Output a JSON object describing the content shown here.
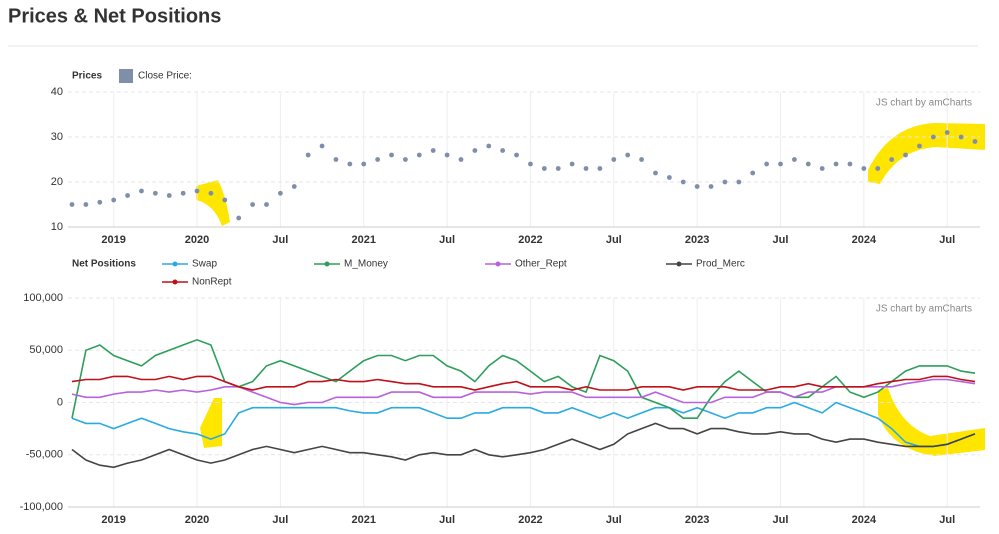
{
  "title": "Prices & Net Positions",
  "chart_data": [
    {
      "type": "scatter",
      "legend_title": "Prices",
      "watermark": "JS chart by amCharts",
      "grid": true,
      "x": [
        "2019-04",
        "2019-05",
        "2019-06",
        "2019-07",
        "2019-08",
        "2019-09",
        "2019-10",
        "2019-11",
        "2019-12",
        "2020-01",
        "2020-02",
        "2020-03",
        "2020-04",
        "2020-05",
        "2020-06",
        "2020-07",
        "2020-08",
        "2020-09",
        "2020-10",
        "2020-11",
        "2020-12",
        "2021-01",
        "2021-02",
        "2021-03",
        "2021-04",
        "2021-05",
        "2021-06",
        "2021-07",
        "2021-08",
        "2021-09",
        "2021-10",
        "2021-11",
        "2021-12",
        "2022-01",
        "2022-02",
        "2022-03",
        "2022-04",
        "2022-05",
        "2022-06",
        "2022-07",
        "2022-08",
        "2022-09",
        "2022-10",
        "2022-11",
        "2022-12",
        "2023-01",
        "2023-02",
        "2023-03",
        "2023-04",
        "2023-05",
        "2023-06",
        "2023-07",
        "2023-08",
        "2023-09",
        "2023-10",
        "2023-11",
        "2023-12",
        "2024-01",
        "2024-02",
        "2024-03",
        "2024-04",
        "2024-05",
        "2024-06",
        "2024-07",
        "2024-08",
        "2024-09"
      ],
      "xlim": [
        "2019-04",
        "2024-09"
      ],
      "xticks": [
        {
          "value": "2019-07",
          "label": "2019"
        },
        {
          "value": "2020-01",
          "label": "2020"
        },
        {
          "value": "2020-07",
          "label": "Jul"
        },
        {
          "value": "2021-01",
          "label": "2021"
        },
        {
          "value": "2021-07",
          "label": "Jul"
        },
        {
          "value": "2022-01",
          "label": "2022"
        },
        {
          "value": "2022-07",
          "label": "Jul"
        },
        {
          "value": "2023-01",
          "label": "2023"
        },
        {
          "value": "2023-07",
          "label": "Jul"
        },
        {
          "value": "2024-01",
          "label": "2024"
        },
        {
          "value": "2024-07",
          "label": "Jul"
        }
      ],
      "ylim": [
        10,
        40
      ],
      "yticks": [
        10,
        20,
        30,
        40
      ],
      "series": [
        {
          "name": "Close Price:",
          "color": "#7f8fa9",
          "values": [
            15,
            15,
            15.5,
            16,
            17,
            18,
            17.5,
            17,
            17.5,
            18,
            17.5,
            16,
            12,
            15,
            15,
            17.5,
            19,
            26,
            28,
            25,
            24,
            24,
            25,
            26,
            25,
            26,
            27,
            26,
            25,
            27,
            28,
            27,
            26,
            24,
            23,
            23,
            24,
            23,
            23,
            25,
            26,
            25,
            22,
            21,
            20,
            19,
            19,
            20,
            20,
            22,
            24,
            24,
            25,
            24,
            23,
            24,
            24,
            23,
            23,
            25,
            26,
            28,
            30,
            31,
            30,
            29
          ]
        }
      ]
    },
    {
      "type": "line",
      "legend_title": "Net Positions",
      "watermark": "JS chart by amCharts",
      "grid": true,
      "x": [
        "2019-04",
        "2019-05",
        "2019-06",
        "2019-07",
        "2019-08",
        "2019-09",
        "2019-10",
        "2019-11",
        "2019-12",
        "2020-01",
        "2020-02",
        "2020-03",
        "2020-04",
        "2020-05",
        "2020-06",
        "2020-07",
        "2020-08",
        "2020-09",
        "2020-10",
        "2020-11",
        "2020-12",
        "2021-01",
        "2021-02",
        "2021-03",
        "2021-04",
        "2021-05",
        "2021-06",
        "2021-07",
        "2021-08",
        "2021-09",
        "2021-10",
        "2021-11",
        "2021-12",
        "2022-01",
        "2022-02",
        "2022-03",
        "2022-04",
        "2022-05",
        "2022-06",
        "2022-07",
        "2022-08",
        "2022-09",
        "2022-10",
        "2022-11",
        "2022-12",
        "2023-01",
        "2023-02",
        "2023-03",
        "2023-04",
        "2023-05",
        "2023-06",
        "2023-07",
        "2023-08",
        "2023-09",
        "2023-10",
        "2023-11",
        "2023-12",
        "2024-01",
        "2024-02",
        "2024-03",
        "2024-04",
        "2024-05",
        "2024-06",
        "2024-07",
        "2024-08",
        "2024-09"
      ],
      "xlim": [
        "2019-04",
        "2024-09"
      ],
      "xticks": [
        {
          "value": "2019-07",
          "label": "2019"
        },
        {
          "value": "2020-01",
          "label": "2020"
        },
        {
          "value": "2020-07",
          "label": "Jul"
        },
        {
          "value": "2021-01",
          "label": "2021"
        },
        {
          "value": "2021-07",
          "label": "Jul"
        },
        {
          "value": "2022-01",
          "label": "2022"
        },
        {
          "value": "2022-07",
          "label": "Jul"
        },
        {
          "value": "2023-01",
          "label": "2023"
        },
        {
          "value": "2023-07",
          "label": "Jul"
        },
        {
          "value": "2024-01",
          "label": "2024"
        },
        {
          "value": "2024-07",
          "label": "Jul"
        }
      ],
      "ylim": [
        -100000,
        100000
      ],
      "yticks": [
        {
          "value": -100000,
          "label": "-100,000"
        },
        {
          "value": -50000,
          "label": "-50,000"
        },
        0,
        {
          "value": 50000,
          "label": "50,000"
        },
        {
          "value": 100000,
          "label": "100,000"
        }
      ],
      "series": [
        {
          "name": "Swap",
          "color": "#29abe2",
          "values": [
            -15000,
            -20000,
            -20000,
            -25000,
            -20000,
            -15000,
            -20000,
            -25000,
            -28000,
            -30000,
            -35000,
            -30000,
            -10000,
            -5000,
            -5000,
            -5000,
            -5000,
            -5000,
            -5000,
            -5000,
            -8000,
            -10000,
            -10000,
            -5000,
            -5000,
            -5000,
            -10000,
            -15000,
            -15000,
            -10000,
            -10000,
            -5000,
            -5000,
            -5000,
            -10000,
            -10000,
            -5000,
            -10000,
            -15000,
            -10000,
            -15000,
            -10000,
            -5000,
            -5000,
            -10000,
            -5000,
            -10000,
            -15000,
            -10000,
            -10000,
            -5000,
            -5000,
            0,
            -5000,
            -10000,
            0,
            -5000,
            -10000,
            -15000,
            -25000,
            -38000,
            -42000,
            -42000,
            -40000,
            -35000,
            -30000
          ]
        },
        {
          "name": "M_Money",
          "color": "#2e9e5b",
          "values": [
            -15000,
            50000,
            55000,
            45000,
            40000,
            35000,
            45000,
            50000,
            55000,
            60000,
            55000,
            20000,
            15000,
            20000,
            35000,
            40000,
            35000,
            30000,
            25000,
            20000,
            30000,
            40000,
            45000,
            45000,
            40000,
            45000,
            45000,
            35000,
            30000,
            20000,
            35000,
            45000,
            40000,
            30000,
            20000,
            25000,
            15000,
            10000,
            45000,
            40000,
            30000,
            5000,
            0,
            -5000,
            -15000,
            -15000,
            5000,
            20000,
            30000,
            20000,
            10000,
            10000,
            5000,
            5000,
            15000,
            25000,
            10000,
            5000,
            10000,
            20000,
            30000,
            35000,
            35000,
            35000,
            30000,
            28000
          ]
        },
        {
          "name": "Other_Rept",
          "color": "#b662e0",
          "values": [
            8000,
            5000,
            5000,
            8000,
            10000,
            10000,
            12000,
            10000,
            12000,
            10000,
            12000,
            15000,
            15000,
            10000,
            5000,
            0,
            -2000,
            0,
            0,
            5000,
            5000,
            5000,
            5000,
            10000,
            10000,
            10000,
            5000,
            5000,
            5000,
            10000,
            10000,
            10000,
            10000,
            8000,
            10000,
            10000,
            10000,
            5000,
            5000,
            5000,
            5000,
            5000,
            10000,
            5000,
            0,
            0,
            0,
            5000,
            5000,
            5000,
            10000,
            10000,
            5000,
            10000,
            10000,
            15000,
            15000,
            15000,
            15000,
            15000,
            18000,
            20000,
            22000,
            22000,
            20000,
            18000
          ]
        },
        {
          "name": "Prod_Merc",
          "color": "#444444",
          "values": [
            -45000,
            -55000,
            -60000,
            -62000,
            -58000,
            -55000,
            -50000,
            -45000,
            -50000,
            -55000,
            -58000,
            -55000,
            -50000,
            -45000,
            -42000,
            -45000,
            -48000,
            -45000,
            -42000,
            -45000,
            -48000,
            -48000,
            -50000,
            -52000,
            -55000,
            -50000,
            -48000,
            -50000,
            -50000,
            -45000,
            -50000,
            -52000,
            -50000,
            -48000,
            -45000,
            -40000,
            -35000,
            -40000,
            -45000,
            -40000,
            -30000,
            -25000,
            -20000,
            -25000,
            -25000,
            -30000,
            -25000,
            -25000,
            -28000,
            -30000,
            -30000,
            -28000,
            -30000,
            -30000,
            -35000,
            -38000,
            -35000,
            -35000,
            -38000,
            -40000,
            -42000,
            -42000,
            -42000,
            -40000,
            -35000,
            -30000
          ]
        },
        {
          "name": "NonRept",
          "color": "#c0101a",
          "values": [
            20000,
            22000,
            22000,
            25000,
            25000,
            22000,
            22000,
            25000,
            22000,
            25000,
            25000,
            20000,
            15000,
            12000,
            15000,
            15000,
            15000,
            20000,
            20000,
            22000,
            20000,
            20000,
            22000,
            20000,
            18000,
            18000,
            15000,
            15000,
            15000,
            12000,
            15000,
            18000,
            20000,
            15000,
            15000,
            15000,
            12000,
            15000,
            12000,
            12000,
            12000,
            15000,
            15000,
            15000,
            12000,
            15000,
            15000,
            15000,
            12000,
            12000,
            12000,
            15000,
            15000,
            18000,
            15000,
            15000,
            15000,
            15000,
            18000,
            20000,
            22000,
            22000,
            25000,
            25000,
            22000,
            20000
          ]
        }
      ]
    }
  ]
}
